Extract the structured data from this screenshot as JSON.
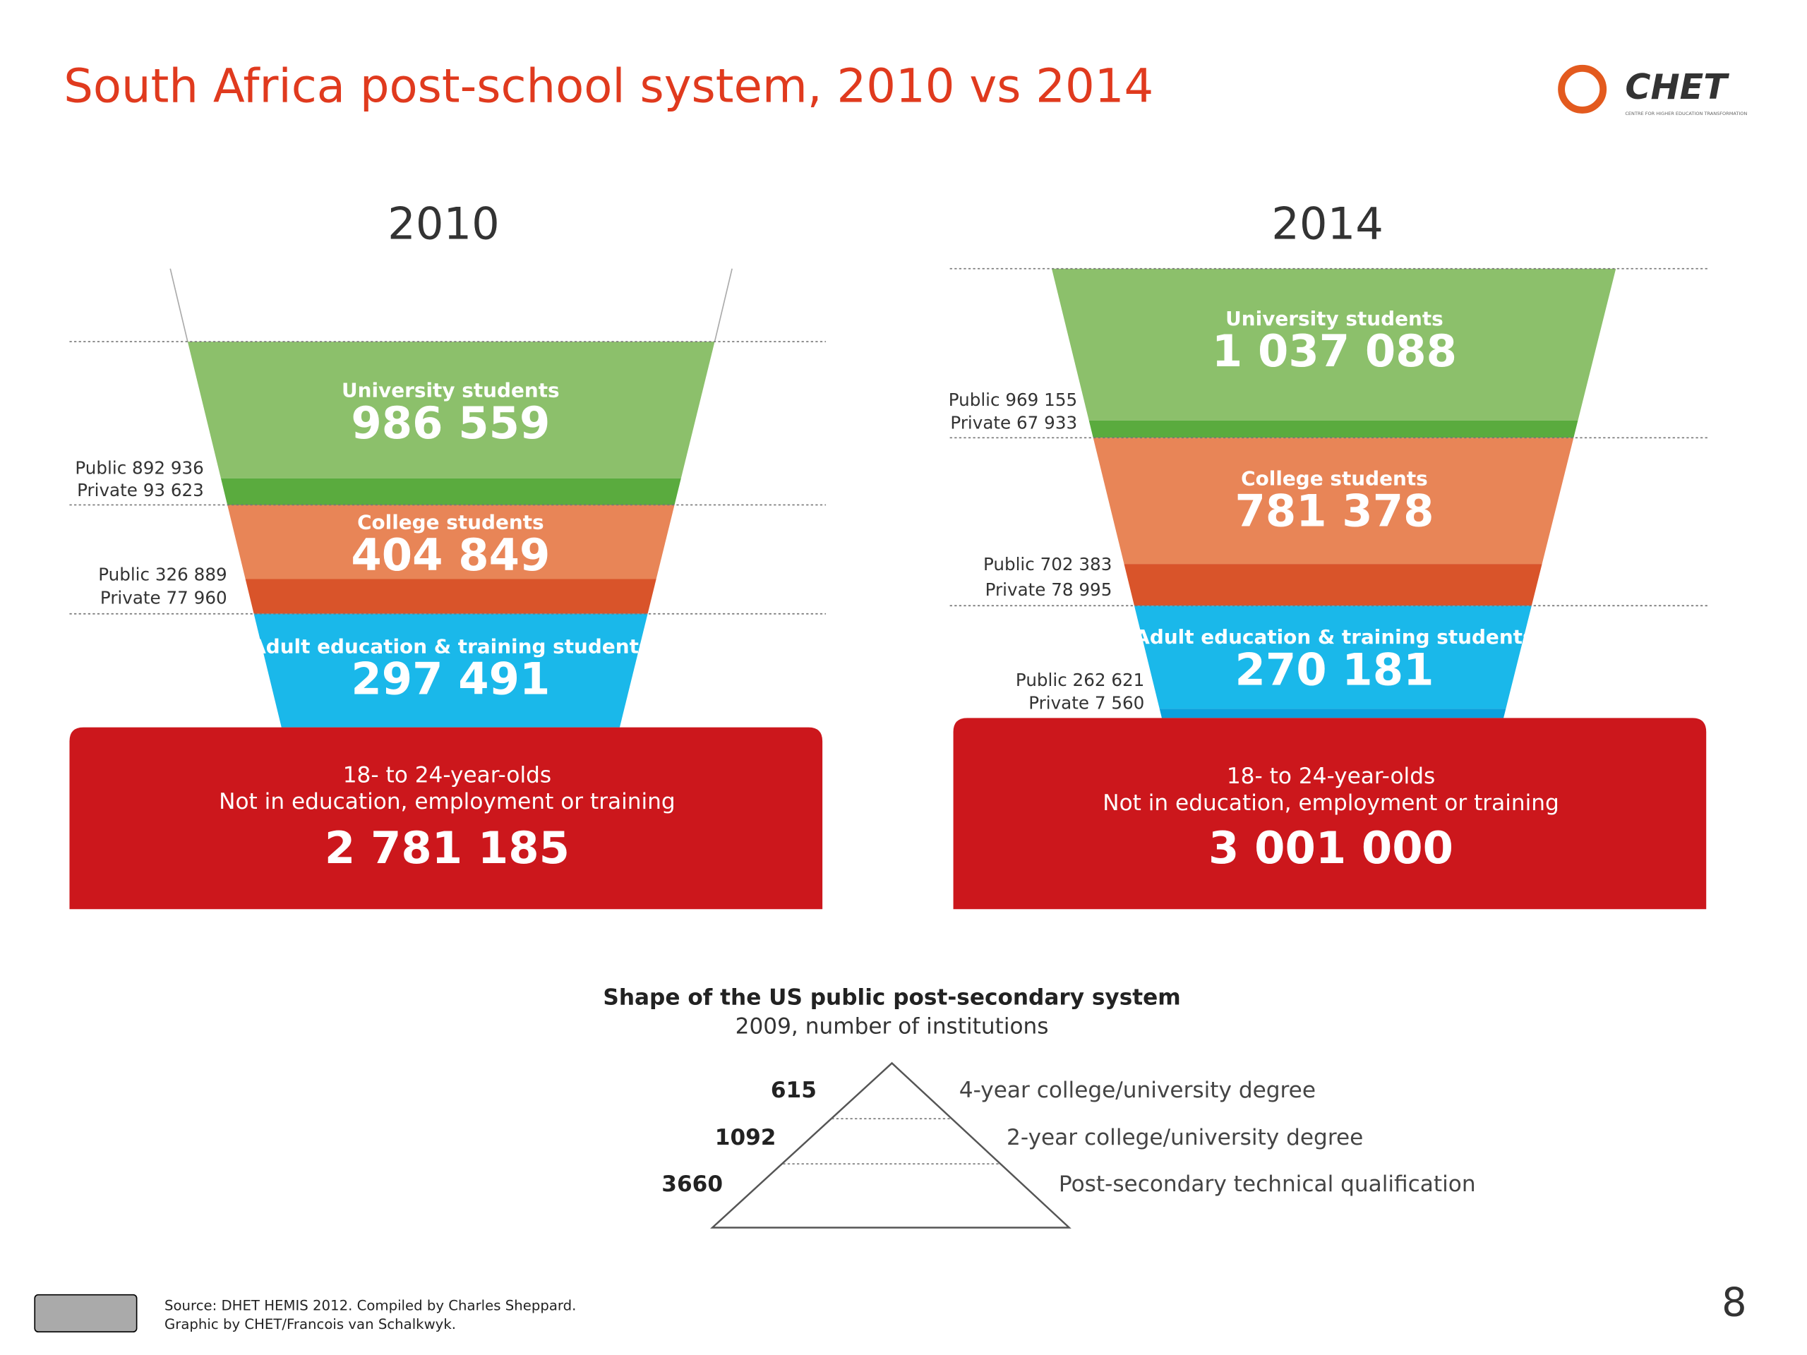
{
  "title": "South Africa post-school system, 2010 vs 2014",
  "logo": {
    "name": "CHET",
    "subtitle": "CENTRE FOR HIGHER EDUCATION TRANSFORMATION"
  },
  "panels": [
    {
      "year": "2010",
      "segments": [
        {
          "label": "University students",
          "value": "986 559",
          "public": "Public 892 936",
          "private": "Private 93 623"
        },
        {
          "label": "College students",
          "value": "404 849",
          "public": "Public 326 889",
          "private": "Private 77 960"
        },
        {
          "label": "Adult education & training students",
          "value": "297 491"
        }
      ],
      "neet": {
        "line1": "18- to 24-year-olds",
        "line2": "Not in education, employment or training",
        "value": "2 781 185"
      }
    },
    {
      "year": "2014",
      "segments": [
        {
          "label": "University students",
          "value": "1 037 088",
          "public": "Public 969 155",
          "private": "Private 67 933"
        },
        {
          "label": "College students",
          "value": "781 378",
          "public": "Public 702 383",
          "private": "Private 78 995"
        },
        {
          "label": "Adult education & training students",
          "value": "270 181",
          "public": "Public 262 621",
          "private": "Private 7 560"
        }
      ],
      "neet": {
        "line1": "18- to 24-year-olds",
        "line2": "Not in education, employment or training",
        "value": "3 001 000"
      }
    }
  ],
  "us": {
    "title": "Shape of the US public post-secondary system",
    "subtitle": "2009, number of institutions",
    "levels": [
      {
        "value": "615",
        "label": "4-year college/university degree"
      },
      {
        "value": "1092",
        "label": "2-year college/university degree"
      },
      {
        "value": "3660",
        "label": "Post-secondary technical qualification"
      }
    ]
  },
  "source": [
    "Source: DHET HEMIS 2012. Compiled by Charles Sheppard.",
    "Graphic by CHET/Francois van Schalkwyk."
  ],
  "page": "8"
}
